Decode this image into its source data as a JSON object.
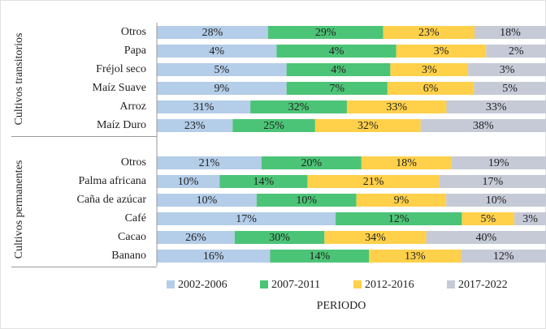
{
  "chart_data": {
    "type": "stacked-bar-100",
    "orientation": "horizontal",
    "xlabel": "PERIODO",
    "groups": [
      {
        "label": "Cultivos transitorios",
        "categories": [
          "Otros",
          "Papa",
          "Fréjol seco",
          "Maíz Suave",
          "Arroz",
          "Maíz Duro"
        ]
      },
      {
        "label": "Cultivos permanentes",
        "categories": [
          "Otros",
          "Palma africana",
          "Caña de azúcar",
          "Café",
          "Cacao",
          "Banano"
        ]
      }
    ],
    "series": [
      {
        "name": "2002-2006",
        "color": "#b4cde8",
        "values": [
          28,
          4,
          5,
          9,
          31,
          23,
          21,
          10,
          10,
          17,
          26,
          16
        ],
        "value_labels": [
          "28%",
          "4%",
          "5%",
          "9%",
          "31%",
          "23%",
          "21%",
          "10%",
          "10%",
          "17%",
          "26%",
          "16%"
        ]
      },
      {
        "name": "2007-2011",
        "color": "#4cc477",
        "values": [
          29,
          4,
          4,
          7,
          32,
          25,
          20,
          14,
          10,
          12,
          30,
          14
        ],
        "value_labels": [
          "29%",
          "4%",
          "4%",
          "7%",
          "32%",
          "25%",
          "20%",
          "14%",
          "10%",
          "12%",
          "30%",
          "14%"
        ]
      },
      {
        "name": "2012-2016",
        "color": "#ffd04a",
        "values": [
          23,
          3,
          3,
          6,
          33,
          32,
          18,
          21,
          9,
          5,
          34,
          13
        ],
        "value_labels": [
          "23%",
          "3%",
          "3%",
          "6%",
          "33%",
          "32%",
          "18%",
          "21%",
          "9%",
          "5%",
          "34%",
          "13%"
        ]
      },
      {
        "name": "2017-2022",
        "color": "#c5cad6",
        "values": [
          18,
          2,
          3,
          5,
          33,
          38,
          19,
          17,
          10,
          3,
          40,
          12
        ],
        "value_labels": [
          "18%",
          "2%",
          "3%",
          "5%",
          "33%",
          "38%",
          "19%",
          "17%",
          "10%",
          "3%",
          "40%",
          "12%"
        ]
      }
    ]
  }
}
